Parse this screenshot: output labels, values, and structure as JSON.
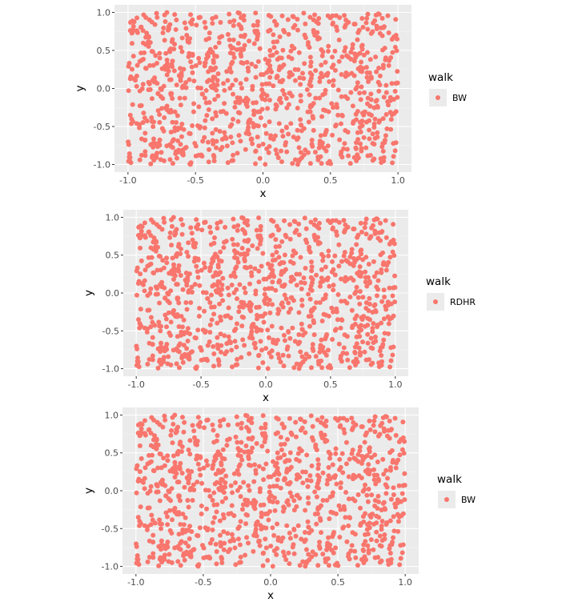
{
  "colors": {
    "panel_background": "#ebebeb",
    "grid_major": "#ffffff",
    "grid_minor": "#f4f4f4",
    "point": "#f8766d",
    "tick_text": "#4d4d4d",
    "tick_mark": "#333333"
  },
  "chart_data": [
    {
      "type": "scatter",
      "xlabel": "x",
      "ylabel": "y",
      "xlim": [
        -1,
        1
      ],
      "ylim": [
        -1,
        1
      ],
      "x_ticks": [
        "-1.0",
        "-0.5",
        "0.0",
        "0.5",
        "1.0"
      ],
      "y_ticks": [
        "-1.0",
        "-0.5",
        "0.0",
        "0.5",
        "1.0"
      ],
      "grid": true,
      "legend": {
        "title": "walk",
        "label": "BW",
        "placement": "right"
      },
      "series": [
        {
          "name": "BW",
          "color": "#f8766d",
          "n_points": 1000,
          "seed": 11
        }
      ]
    },
    {
      "type": "scatter",
      "xlabel": "x",
      "ylabel": "y",
      "xlim": [
        -1,
        1
      ],
      "ylim": [
        -1,
        1
      ],
      "x_ticks": [
        "-1.0",
        "-0.5",
        "0.0",
        "0.5",
        "1.0"
      ],
      "y_ticks": [
        "-1.0",
        "-0.5",
        "0.0",
        "0.5",
        "1.0"
      ],
      "grid": true,
      "legend": {
        "title": "walk",
        "label": "RDHR",
        "placement": "right"
      },
      "series": [
        {
          "name": "RDHR",
          "color": "#f8766d",
          "n_points": 1000,
          "seed": 11
        }
      ]
    },
    {
      "type": "scatter",
      "xlabel": "x",
      "ylabel": "y",
      "xlim": [
        -1,
        1
      ],
      "ylim": [
        -1,
        1
      ],
      "x_ticks": [
        "-1.0",
        "-0.5",
        "0.0",
        "0.5",
        "1.0"
      ],
      "y_ticks": [
        "-1.0",
        "-0.5",
        "0.0",
        "0.5",
        "1.0"
      ],
      "grid": true,
      "legend": {
        "title": "walk",
        "label": "BW",
        "placement": "right"
      },
      "series": [
        {
          "name": "BW",
          "color": "#f8766d",
          "n_points": 1000,
          "seed": 11
        }
      ]
    }
  ]
}
